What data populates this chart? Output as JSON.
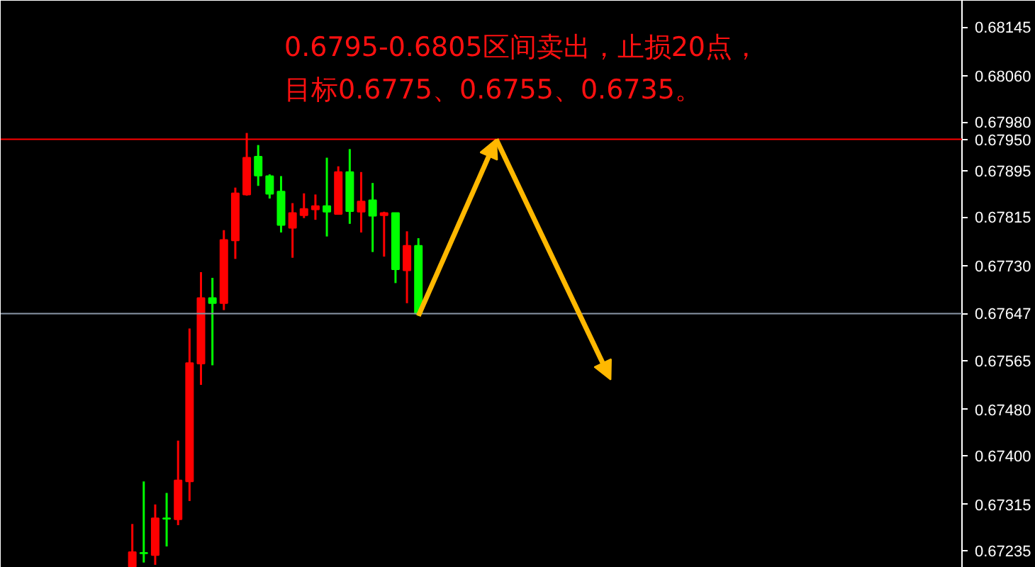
{
  "chart_data": {
    "type": "candlestick",
    "categories": [
      null,
      null,
      null,
      null,
      null,
      null,
      null,
      null,
      null,
      null,
      null,
      null,
      null,
      null,
      null,
      null,
      null,
      null,
      null,
      null,
      null,
      null,
      null,
      null,
      null,
      null,
      null,
      null,
      null,
      null,
      null,
      null,
      null,
      null,
      null,
      null,
      null,
      null,
      null,
      null,
      null,
      null,
      null,
      null,
      null,
      null,
      null,
      null,
      null,
      null,
      null,
      null,
      null,
      null,
      null,
      null,
      null,
      null,
      null,
      null,
      null,
      null,
      null,
      null,
      null,
      null,
      null,
      null,
      null,
      null,
      null,
      null,
      null,
      null,
      null,
      null,
      null,
      null,
      null,
      null,
      null,
      null,
      null,
      null
    ],
    "ohlc": [
      null,
      null,
      null,
      null,
      null,
      null,
      null,
      null,
      null,
      null,
      null,
      [
        0.67207,
        0.67281,
        0.67207,
        0.67232
      ],
      [
        0.67231,
        0.67355,
        0.67214,
        0.6723
      ],
      [
        0.67227,
        0.67315,
        0.6721,
        0.67291
      ],
      [
        0.67291,
        0.67335,
        0.67242,
        0.6729
      ],
      [
        0.67289,
        0.67426,
        0.67279,
        0.67357
      ],
      [
        0.67355,
        0.67621,
        0.67321,
        0.67561
      ],
      [
        0.6756,
        0.67719,
        0.67523,
        0.67674
      ],
      [
        0.67674,
        0.67709,
        0.67557,
        0.67665
      ],
      [
        0.67665,
        0.67792,
        0.67653,
        0.67775
      ],
      [
        0.67774,
        0.67866,
        0.67742,
        0.67856
      ],
      [
        0.67854,
        0.67961,
        0.67852,
        0.67918
      ],
      [
        0.6792,
        0.6794,
        0.67869,
        0.67887
      ],
      [
        0.67886,
        0.67889,
        0.67847,
        0.67855
      ],
      [
        0.67859,
        0.67886,
        0.67788,
        0.67801
      ],
      [
        0.67796,
        0.67839,
        0.67744,
        0.67822
      ],
      [
        0.67818,
        0.67856,
        0.67813,
        0.67829
      ],
      [
        0.67828,
        0.67854,
        0.6781,
        0.67834
      ],
      [
        0.67834,
        0.67918,
        0.67781,
        0.67824
      ],
      [
        0.6782,
        0.67903,
        0.6782,
        0.67893
      ],
      [
        0.67893,
        0.67933,
        0.67803,
        0.67825
      ],
      [
        0.67824,
        0.67893,
        0.67788,
        0.67842
      ],
      [
        0.67844,
        0.67874,
        0.67754,
        0.67817
      ],
      [
        0.67818,
        0.67824,
        0.67746,
        0.67822
      ],
      [
        0.67822,
        0.67822,
        0.677,
        0.67724
      ],
      [
        0.67722,
        0.6779,
        0.67665,
        0.67765
      ],
      [
        0.67765,
        0.67778,
        0.67643,
        0.67647
      ],
      null,
      null,
      null,
      null,
      null,
      null,
      null,
      null,
      null,
      null,
      null,
      null,
      null,
      null,
      null,
      null,
      null,
      null,
      null,
      null,
      null,
      null,
      null,
      null,
      null,
      null,
      null,
      null,
      null,
      null,
      null,
      null,
      null,
      null,
      null,
      null,
      null,
      null,
      null,
      null,
      null,
      null,
      null,
      null,
      null,
      null,
      null
    ],
    "colors": [
      null,
      null,
      null,
      null,
      null,
      null,
      null,
      null,
      null,
      null,
      null,
      "#ff0000",
      "#00ff00",
      "#ff0000",
      "#00ff00",
      "#ff0000",
      "#ff0000",
      "#ff0000",
      "#00ff00",
      "#ff0000",
      "#ff0000",
      "#ff0000",
      "#00ff00",
      "#00ff00",
      "#00ff00",
      "#ff0000",
      "#ff0000",
      "#ff0000",
      "#00ff00",
      "#ff0000",
      "#00ff00",
      "#ff0000",
      "#00ff00",
      "#ff0000",
      "#00ff00",
      "#ff0000",
      "#00ff00",
      null,
      null,
      null,
      null,
      null,
      null,
      null,
      null,
      null,
      null,
      null,
      null,
      null,
      null,
      null,
      null,
      null,
      null,
      null,
      null,
      null,
      null,
      null,
      null,
      null,
      null,
      null,
      null,
      null,
      null,
      null,
      null,
      null,
      null,
      null,
      null,
      null,
      null,
      null,
      null,
      null,
      null,
      null,
      null,
      null,
      null,
      null
    ],
    "ylim": [
      0.67205,
      0.68191
    ],
    "yticks": [
      {
        "value": 0.68145,
        "label": "0.68145"
      },
      {
        "value": 0.6806,
        "label": "0.68060"
      },
      {
        "value": 0.6798,
        "label": "0.67980"
      },
      {
        "value": 0.67895,
        "label": "0.67895"
      },
      {
        "value": 0.67815,
        "label": "0.67815"
      },
      {
        "value": 0.6773,
        "label": "0.67730"
      },
      {
        "value": 0.67565,
        "label": "0.67565"
      },
      {
        "value": 0.6748,
        "label": "0.67480"
      },
      {
        "value": 0.674,
        "label": "0.67400"
      },
      {
        "value": 0.67315,
        "label": "0.67315"
      },
      {
        "value": 0.67235,
        "label": "0.67235"
      }
    ],
    "ref_lines": [
      {
        "axis": "y",
        "value": 0.6795,
        "label": "0.67950",
        "color": "#ff0000"
      },
      {
        "axis": "y",
        "value": 0.67647,
        "label": "0.67647",
        "color": "#8a97a8"
      }
    ],
    "annotations": [
      "0.6795-0.6805区间卖出，止损20点，",
      "目标0.6775、0.6755、0.6735。"
    ],
    "grid": false
  }
}
